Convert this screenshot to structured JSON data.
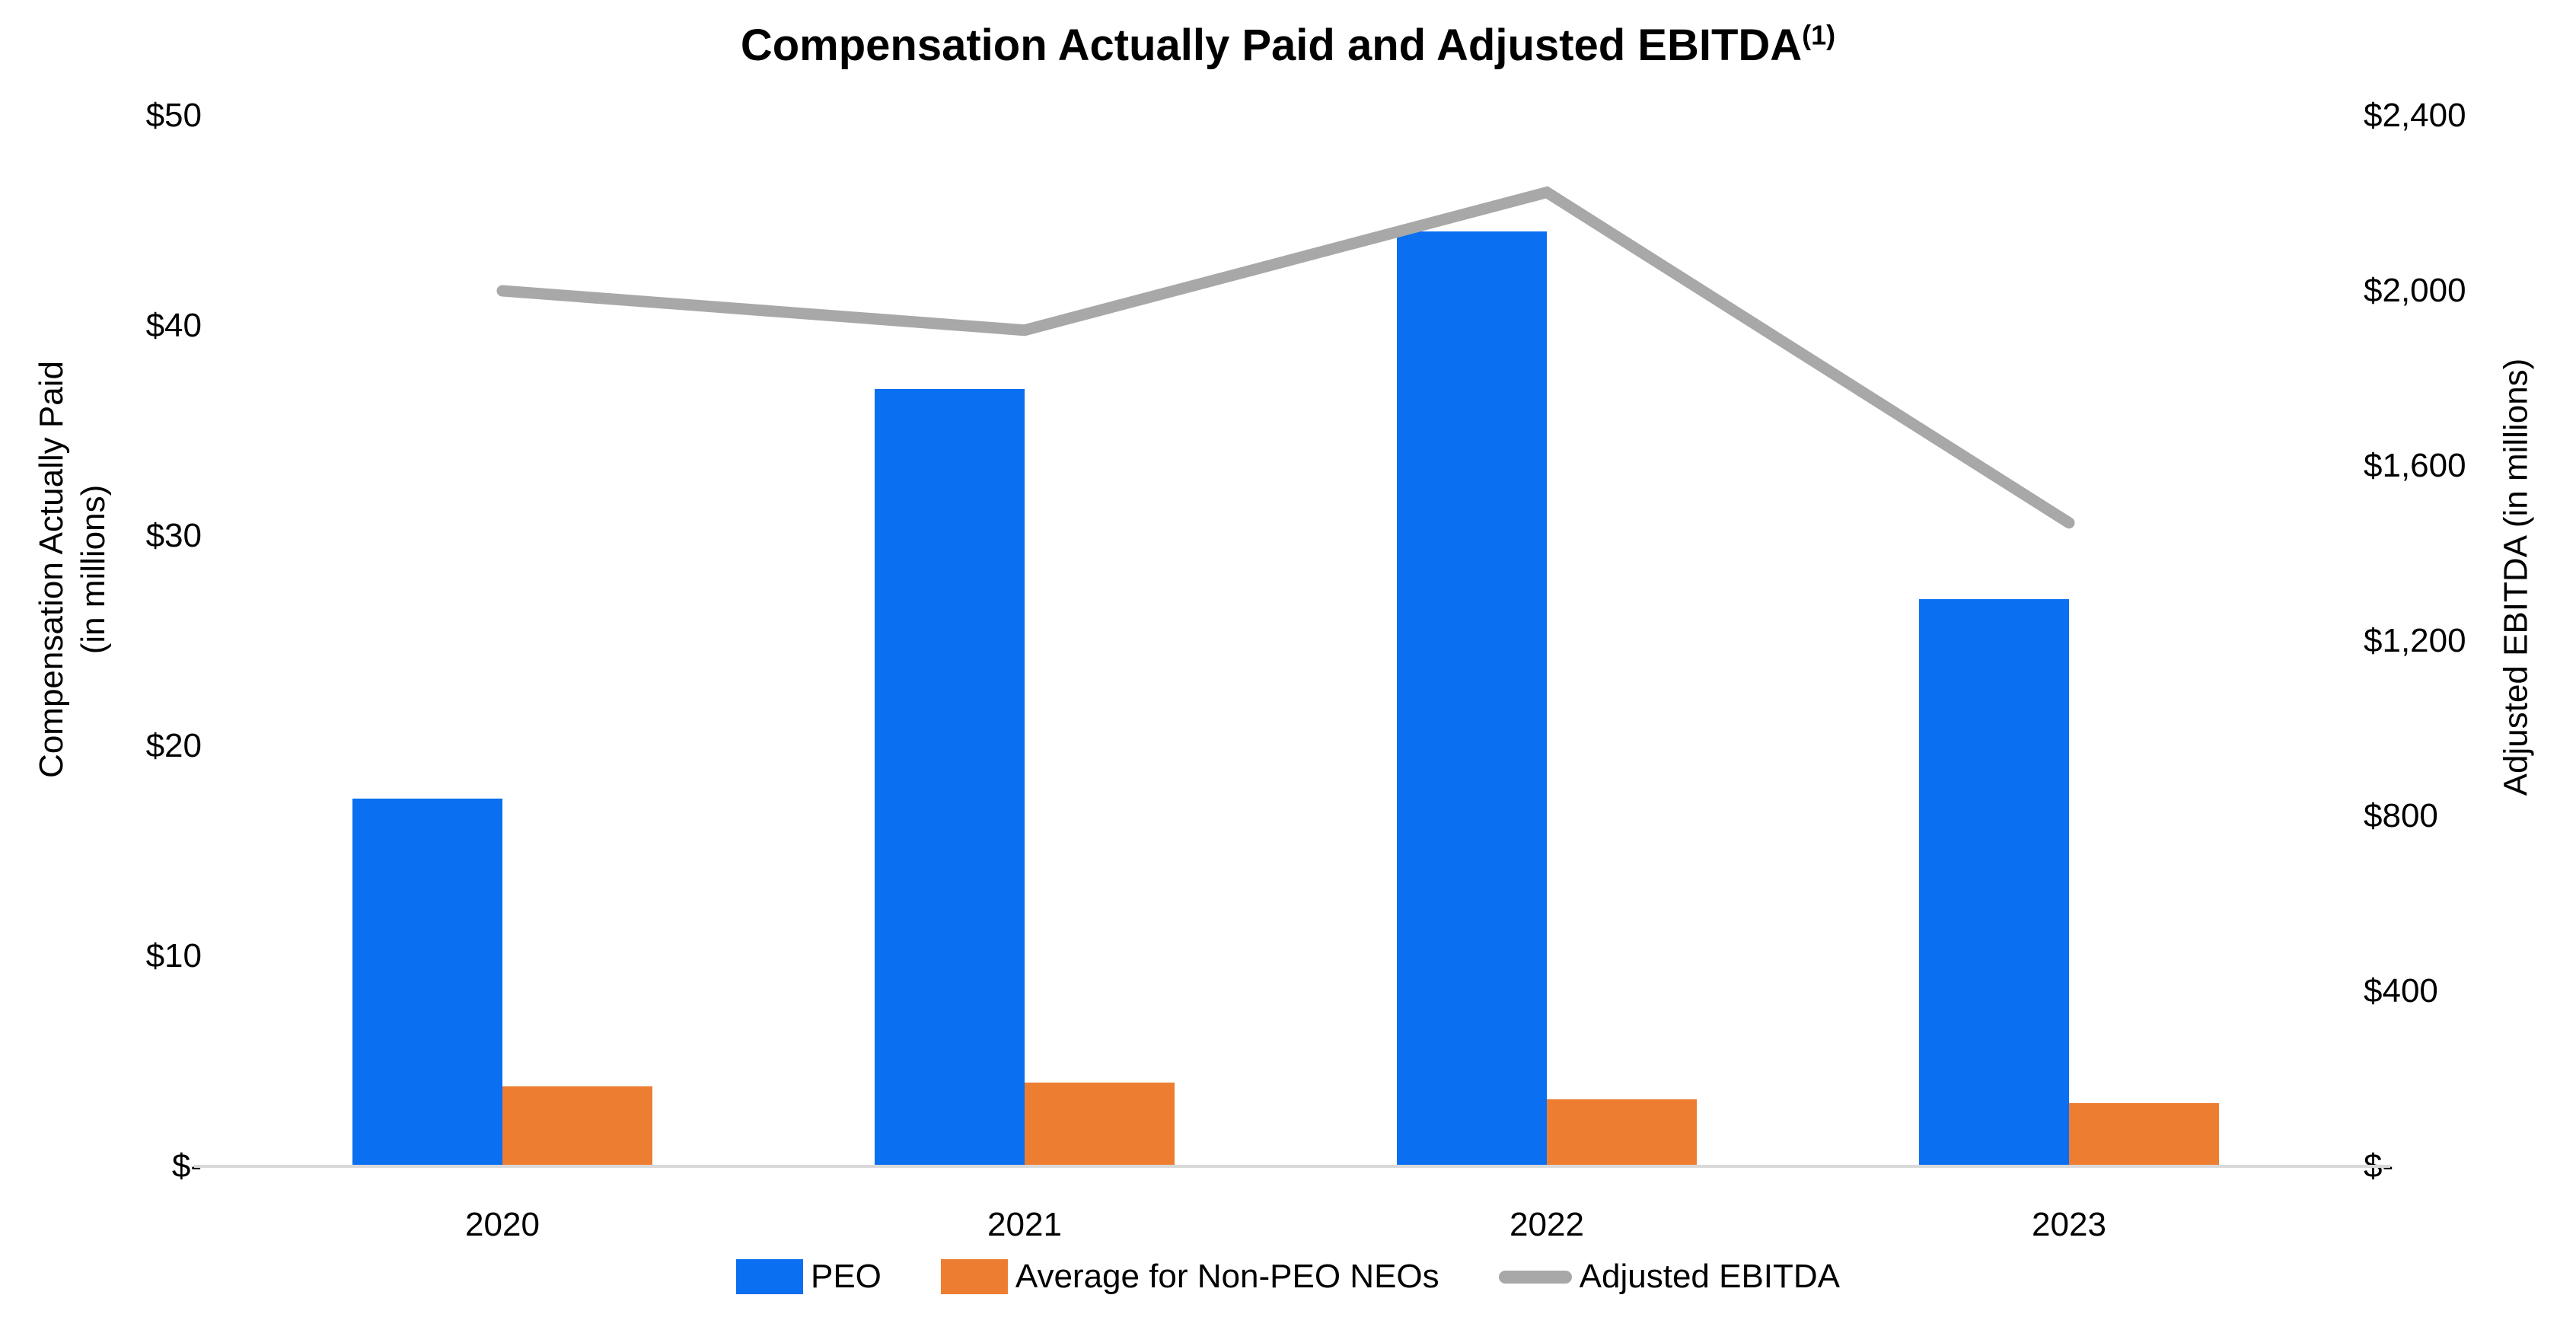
{
  "title": {
    "text": "Compensation Actually Paid and Adjusted EBITDA",
    "superscript": "(1)"
  },
  "left_axis": {
    "title_line1": "Compensation Actually Paid",
    "title_line2": "(in millions)",
    "ticks": [
      {
        "label": "$50",
        "value": 50
      },
      {
        "label": "$40",
        "value": 40
      },
      {
        "label": "$30",
        "value": 30
      },
      {
        "label": "$20",
        "value": 20
      },
      {
        "label": "$10",
        "value": 10
      },
      {
        "label": "$-",
        "value": 0
      }
    ]
  },
  "right_axis": {
    "title": "Adjusted EBITDA (in millions)",
    "ticks": [
      {
        "label": "$2,400",
        "value": 2400
      },
      {
        "label": "$2,000",
        "value": 2000
      },
      {
        "label": "$1,600",
        "value": 1600
      },
      {
        "label": "$1,200",
        "value": 1200
      },
      {
        "label": "$800",
        "value": 800
      },
      {
        "label": "$400",
        "value": 400
      },
      {
        "label": "$-",
        "value": 0
      }
    ]
  },
  "legend": [
    {
      "label": "PEO",
      "swatch": "bar",
      "color": "#0a6ff0"
    },
    {
      "label": "Average for Non-PEO NEOs",
      "swatch": "bar",
      "color": "#ed7d31"
    },
    {
      "label": "Adjusted EBITDA",
      "swatch": "line",
      "color": "#a8a8a8"
    }
  ],
  "colors": {
    "peo_bar": "#0a6ff0",
    "non_peo_bar": "#ed7d31",
    "ebitda_line": "#a8a8a8",
    "axis_baseline": "#d9d9d9"
  },
  "chart_data": {
    "type": "bar",
    "subtype": "combo-bar-line-dual-axis",
    "title": "Compensation Actually Paid and Adjusted EBITDA(1)",
    "categories": [
      "2020",
      "2021",
      "2022",
      "2023"
    ],
    "series": [
      {
        "name": "PEO",
        "type": "bar",
        "axis": "left",
        "color": "#0a6ff0",
        "values": [
          17.5,
          37.0,
          44.5,
          27.0
        ]
      },
      {
        "name": "Average for Non-PEO NEOs",
        "type": "bar",
        "axis": "left",
        "color": "#ed7d31",
        "values": [
          3.8,
          4.0,
          3.2,
          3.0
        ]
      },
      {
        "name": "Adjusted EBITDA",
        "type": "line",
        "axis": "right",
        "color": "#a8a8a8",
        "values": [
          2000,
          1910,
          2225,
          1470
        ]
      }
    ],
    "left_ylabel": "Compensation Actually Paid (in millions)",
    "right_ylabel": "Adjusted EBITDA (in millions)",
    "left_ylim": [
      0,
      50
    ],
    "right_ylim": [
      0,
      2400
    ],
    "grid": false,
    "legend_position": "bottom"
  }
}
